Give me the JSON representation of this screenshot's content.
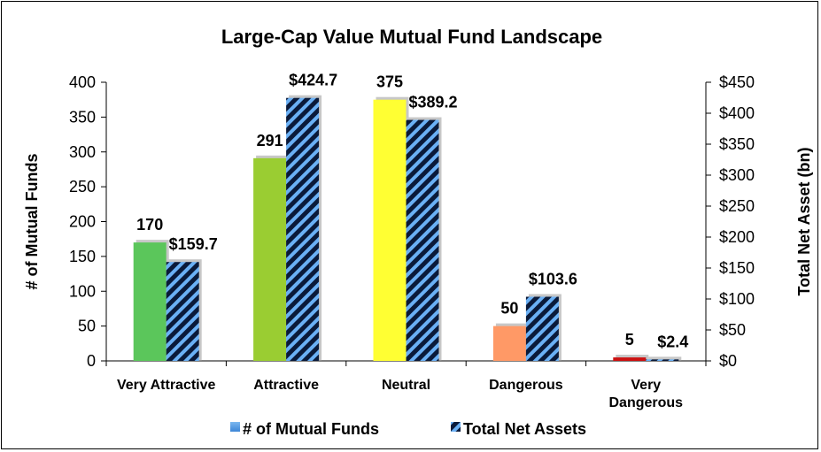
{
  "chart_data": {
    "type": "bar",
    "title": "Large-Cap Value Mutual Fund Landscape",
    "categories": [
      "Very Attractive",
      "Attractive",
      "Neutral",
      "Dangerous",
      "Very Dangerous"
    ],
    "series": [
      {
        "name": "# of Mutual Funds",
        "axis": "left",
        "values": [
          170,
          291,
          375,
          50,
          5
        ],
        "labels": [
          "170",
          "291",
          "375",
          "50",
          "5"
        ],
        "bar_colors": [
          "#5bc65b",
          "#9acd32",
          "#ffff33",
          "#ff9966",
          "#cc1111"
        ],
        "legend_color": "#4d9de0"
      },
      {
        "name": "Total Net Assets",
        "axis": "right",
        "values": [
          159.7,
          424.7,
          389.2,
          103.6,
          2.4
        ],
        "labels": [
          "$159.7",
          "$424.7",
          "$389.2",
          "$103.6",
          "$2.4"
        ],
        "fill": "hatched",
        "colors": [
          "#0a1a3a",
          "#6ab0f5"
        ]
      }
    ],
    "ylabel": "# of Mutual Funds",
    "ylim": [
      0,
      400
    ],
    "yticks": [
      "0",
      "50",
      "100",
      "150",
      "200",
      "250",
      "300",
      "350",
      "400"
    ],
    "y2label": "Total Net Asset (bn)",
    "y2lim": [
      0,
      450
    ],
    "y2ticks": [
      "$0",
      "$50",
      "$100",
      "$150",
      "$200",
      "$250",
      "$300",
      "$350",
      "$400",
      "$450"
    ],
    "legend": "bottom",
    "grid": false
  }
}
